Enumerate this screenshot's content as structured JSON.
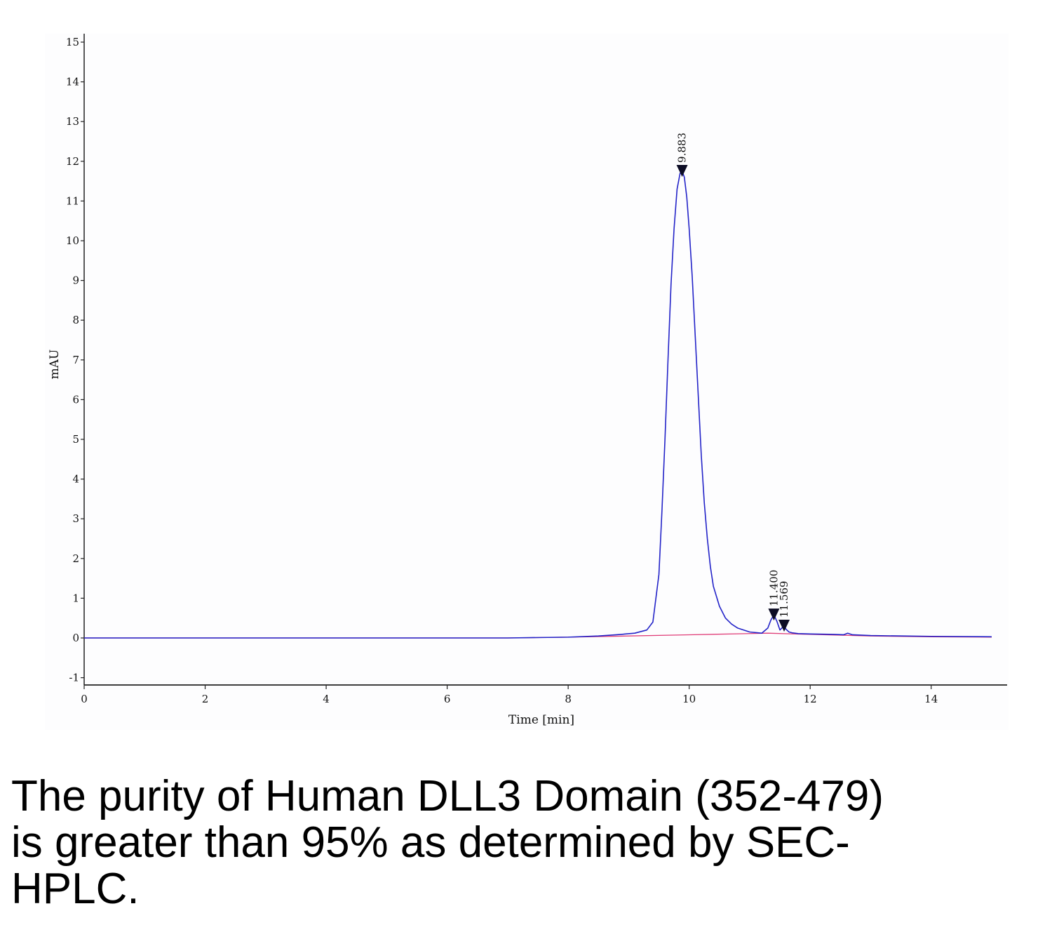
{
  "chart_data": {
    "type": "line",
    "title": "",
    "xlabel": "Time [min]",
    "ylabel": "mAU",
    "xlim": [
      0,
      15
    ],
    "ylim": [
      -1.2,
      15.2
    ],
    "x_ticks": [
      0,
      2,
      4,
      6,
      8,
      10,
      12,
      14
    ],
    "y_ticks": [
      -1,
      0,
      1,
      2,
      3,
      4,
      5,
      6,
      7,
      8,
      9,
      10,
      11,
      12,
      13,
      14,
      15
    ],
    "grid": false,
    "legend": "none",
    "series": [
      {
        "color": "#2323c8",
        "x": [
          0,
          2,
          4,
          6,
          7,
          8,
          8.5,
          8.8,
          9.1,
          9.3,
          9.4,
          9.5,
          9.55,
          9.6,
          9.65,
          9.7,
          9.75,
          9.8,
          9.85,
          9.883,
          9.92,
          9.96,
          10.0,
          10.05,
          10.1,
          10.15,
          10.2,
          10.25,
          10.3,
          10.35,
          10.4,
          10.5,
          10.6,
          10.7,
          10.8,
          11.0,
          11.2,
          11.3,
          11.35,
          11.4,
          11.45,
          11.5,
          11.55,
          11.569,
          11.6,
          11.65,
          11.7,
          11.8,
          12.0,
          12.4,
          12.55,
          12.62,
          12.7,
          13.0,
          14.0,
          15.0
        ],
        "y": [
          0.0,
          0.0,
          0.0,
          0.0,
          0.0,
          0.02,
          0.05,
          0.08,
          0.12,
          0.2,
          0.4,
          1.6,
          3.2,
          5.0,
          7.0,
          8.9,
          10.3,
          11.3,
          11.7,
          11.75,
          11.6,
          11.1,
          10.3,
          9.1,
          7.6,
          6.1,
          4.6,
          3.4,
          2.5,
          1.8,
          1.3,
          0.8,
          0.5,
          0.35,
          0.25,
          0.15,
          0.12,
          0.25,
          0.45,
          0.58,
          0.42,
          0.2,
          0.28,
          0.3,
          0.22,
          0.15,
          0.13,
          0.11,
          0.1,
          0.09,
          0.08,
          0.12,
          0.08,
          0.06,
          0.04,
          0.03
        ]
      },
      {
        "color": "#e0407a",
        "x": [
          0,
          7,
          8,
          9,
          10,
          11,
          11.3,
          12,
          13,
          14,
          15
        ],
        "y": [
          0.0,
          0.0,
          0.02,
          0.05,
          0.08,
          0.11,
          0.12,
          0.09,
          0.05,
          0.03,
          0.02
        ]
      }
    ],
    "annotations": [
      {
        "x": 9.883,
        "y": 11.75,
        "label": "9.883"
      },
      {
        "x": 11.4,
        "y": 0.58,
        "label": "11.400"
      },
      {
        "x": 11.569,
        "y": 0.3,
        "label": "11.569"
      }
    ]
  },
  "caption": "The purity of Human DLL3 Domain (352-479)\nis greater than 95% as determined by SEC-\nHPLC."
}
